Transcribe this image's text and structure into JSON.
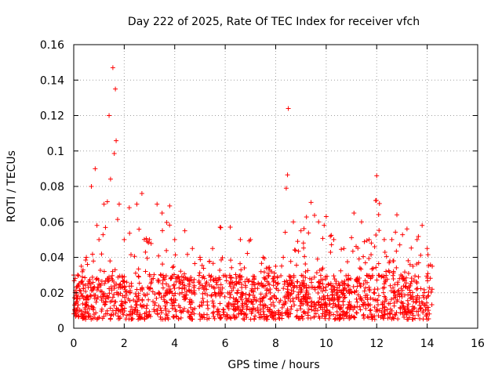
{
  "chart_data": {
    "type": "scatter",
    "title": "Day 222 of 2025, Rate Of TEC Index for receiver vfch",
    "xlabel": "GPS time / hours",
    "ylabel": "ROTI / TECUs",
    "xlim": [
      0,
      16
    ],
    "ylim": [
      0,
      0.16
    ],
    "xticks": [
      0,
      2,
      4,
      6,
      8,
      10,
      12,
      14,
      16
    ],
    "xtick_labels": [
      "0",
      "2",
      "4",
      "6",
      "8",
      "10",
      "12",
      "14",
      "16"
    ],
    "yticks": [
      0,
      0.02,
      0.04,
      0.06,
      0.08,
      0.1,
      0.12,
      0.14,
      0.16
    ],
    "ytick_labels": [
      "0",
      "0.02",
      "0.04",
      "0.06",
      "0.08",
      "0.1",
      "0.12",
      "0.14",
      "0.16"
    ],
    "grid": true,
    "marker": "+",
    "color": "#ff0000",
    "data_range_hours": [
      0,
      14.2
    ],
    "gap_hours": [
      4.8,
      4.95
    ],
    "series": [
      {
        "name": "ROTI",
        "baseline_range": [
          0.005,
          0.03
        ],
        "envelope": [
          {
            "x": 0.0,
            "y": 0.03
          },
          {
            "x": 0.3,
            "y": 0.035
          },
          {
            "x": 0.5,
            "y": 0.04
          },
          {
            "x": 0.7,
            "y": 0.08
          },
          {
            "x": 0.85,
            "y": 0.09
          },
          {
            "x": 1.0,
            "y": 0.05
          },
          {
            "x": 1.2,
            "y": 0.07
          },
          {
            "x": 1.4,
            "y": 0.12
          },
          {
            "x": 1.55,
            "y": 0.147
          },
          {
            "x": 1.65,
            "y": 0.135
          },
          {
            "x": 1.8,
            "y": 0.07
          },
          {
            "x": 2.0,
            "y": 0.05
          },
          {
            "x": 2.2,
            "y": 0.068
          },
          {
            "x": 2.5,
            "y": 0.07
          },
          {
            "x": 2.7,
            "y": 0.076
          },
          {
            "x": 3.0,
            "y": 0.05
          },
          {
            "x": 3.3,
            "y": 0.07
          },
          {
            "x": 3.5,
            "y": 0.065
          },
          {
            "x": 3.8,
            "y": 0.069
          },
          {
            "x": 4.0,
            "y": 0.05
          },
          {
            "x": 4.4,
            "y": 0.055
          },
          {
            "x": 4.7,
            "y": 0.045
          },
          {
            "x": 5.0,
            "y": 0.04
          },
          {
            "x": 5.5,
            "y": 0.045
          },
          {
            "x": 5.8,
            "y": 0.057
          },
          {
            "x": 6.2,
            "y": 0.057
          },
          {
            "x": 6.6,
            "y": 0.05
          },
          {
            "x": 7.0,
            "y": 0.05
          },
          {
            "x": 7.5,
            "y": 0.04
          },
          {
            "x": 8.0,
            "y": 0.035
          },
          {
            "x": 8.3,
            "y": 0.04
          },
          {
            "x": 8.5,
            "y": 0.124
          },
          {
            "x": 8.7,
            "y": 0.06
          },
          {
            "x": 9.0,
            "y": 0.055
          },
          {
            "x": 9.4,
            "y": 0.071
          },
          {
            "x": 9.7,
            "y": 0.06
          },
          {
            "x": 10.0,
            "y": 0.063
          },
          {
            "x": 10.3,
            "y": 0.05
          },
          {
            "x": 10.7,
            "y": 0.045
          },
          {
            "x": 11.1,
            "y": 0.065
          },
          {
            "x": 11.4,
            "y": 0.06
          },
          {
            "x": 11.7,
            "y": 0.05
          },
          {
            "x": 12.0,
            "y": 0.086
          },
          {
            "x": 12.3,
            "y": 0.05
          },
          {
            "x": 12.6,
            "y": 0.05
          },
          {
            "x": 12.8,
            "y": 0.064
          },
          {
            "x": 13.2,
            "y": 0.056
          },
          {
            "x": 13.6,
            "y": 0.05
          },
          {
            "x": 13.8,
            "y": 0.058
          },
          {
            "x": 14.0,
            "y": 0.045
          },
          {
            "x": 14.2,
            "y": 0.035
          }
        ]
      }
    ]
  }
}
